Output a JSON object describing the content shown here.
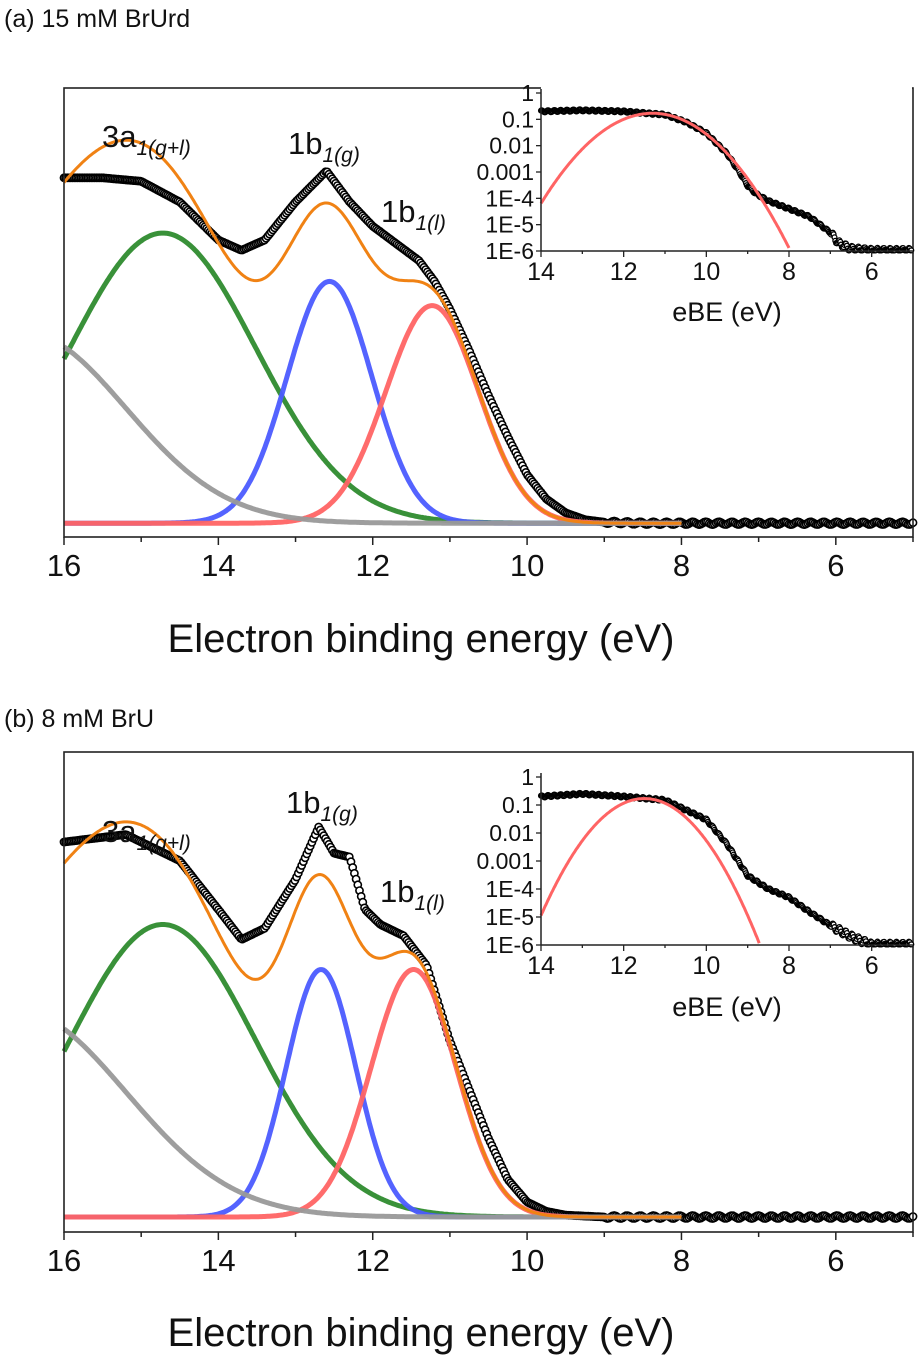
{
  "chart_data": [
    {
      "type": "line",
      "panel_title": "(a) 15 mM BrUrd",
      "xlabel": "Electron binding energy (eV)",
      "ylabel": "",
      "xlim": [
        16,
        5
      ],
      "ylim": [
        -0.04,
        1.26
      ],
      "x_ticks": [
        "16",
        "14",
        "12",
        "10",
        "8",
        "6"
      ],
      "annotations": [
        {
          "main": "3a",
          "sub": "1(g+l)"
        },
        {
          "main": "1b",
          "sub": "1(g)"
        },
        {
          "main": "1b",
          "sub": "1(l)"
        }
      ],
      "experimental": {
        "x": [
          16,
          15.5,
          15,
          14.5,
          14,
          13.7,
          13.4,
          13,
          12.6,
          12.3,
          12,
          11.7,
          11.4,
          11.2,
          11,
          10.75,
          10.5,
          10.25,
          10,
          9.75,
          9.5,
          9.25,
          9,
          8.5,
          8,
          7,
          6,
          5
        ],
        "y": [
          1.0,
          1.0,
          0.99,
          0.93,
          0.82,
          0.79,
          0.82,
          0.93,
          1.02,
          0.93,
          0.86,
          0.81,
          0.76,
          0.7,
          0.62,
          0.5,
          0.37,
          0.25,
          0.14,
          0.07,
          0.03,
          0.01,
          0.003,
          0,
          0,
          0,
          0,
          0
        ]
      },
      "components": [
        {
          "name": "3a1(g+l)",
          "shape": "gaussian",
          "center": 14.72,
          "amplitude": 0.84,
          "sigma": 1.2,
          "color": "#2e8b2e"
        },
        {
          "name": "1b1(g)",
          "shape": "gaussian",
          "center": 12.56,
          "amplitude": 0.7,
          "sigma": 0.55,
          "color": "#4b5bff"
        },
        {
          "name": "1b1(l)",
          "shape": "gaussian",
          "center": 11.23,
          "amplitude": 0.63,
          "sigma": 0.6,
          "color": "#ff6464"
        },
        {
          "name": "background",
          "shape": "gaussian",
          "center": 16.5,
          "amplitude": 0.55,
          "sigma": 1.3,
          "color": "#999999"
        }
      ],
      "fit": {
        "name": "sum",
        "range": [
          16,
          8
        ],
        "color": "#f08214"
      },
      "inset": {
        "xlabel": "eBE (eV)",
        "xlim": [
          14,
          5
        ],
        "yscale": "log",
        "ylim": [
          1e-06,
          1
        ],
        "y_ticks": [
          "1",
          "0.1",
          "0.01",
          "0.001",
          "1E-4",
          "1E-5",
          "1E-6"
        ],
        "x_ticks": [
          "14",
          "12",
          "10",
          "8",
          "6"
        ],
        "experimental": {
          "x": [
            14,
            13,
            12,
            11,
            10.5,
            10,
            9.5,
            9.2,
            9,
            8.8,
            8.5,
            8,
            7.5,
            7,
            6.8,
            6.5,
            6,
            5
          ],
          "y": [
            0.2,
            0.22,
            0.2,
            0.15,
            0.08,
            0.03,
            0.005,
            0.001,
            0.0003,
            0.00015,
            8e-05,
            4e-05,
            2e-05,
            5e-06,
            2e-06,
            1.2e-06,
            1e-06,
            1e-06
          ]
        },
        "fit_component": {
          "name": "1b1(l)",
          "center": 11.3,
          "amplitude": 0.17,
          "sigma": 0.68,
          "range": [
            14,
            8
          ],
          "color": "#ff6464"
        }
      }
    },
    {
      "type": "line",
      "panel_title": "(b) 8 mM BrU",
      "xlabel": "Electron binding energy (eV)",
      "ylabel": "",
      "xlim": [
        16,
        5
      ],
      "ylim": [
        -0.04,
        1.24
      ],
      "x_ticks": [
        "16",
        "14",
        "12",
        "10",
        "8",
        "6"
      ],
      "annotations": [
        {
          "main": "3a",
          "sub": "1(g+l)"
        },
        {
          "main": "1b",
          "sub": "1(g)"
        },
        {
          "main": "1b",
          "sub": "1(l)"
        }
      ],
      "experimental": {
        "x": [
          16,
          15.2,
          14.5,
          14,
          13.7,
          13.4,
          13,
          12.7,
          12.5,
          12.3,
          12.1,
          11.9,
          11.6,
          11.3,
          11,
          10.75,
          10.5,
          10.25,
          10,
          9.75,
          9.5,
          9,
          8,
          7,
          6,
          5
        ],
        "y": [
          1.0,
          1.02,
          0.95,
          0.82,
          0.74,
          0.77,
          0.9,
          1.04,
          0.97,
          0.96,
          0.82,
          0.78,
          0.75,
          0.67,
          0.47,
          0.34,
          0.21,
          0.1,
          0.04,
          0.015,
          0.005,
          0,
          0,
          0,
          0,
          0
        ]
      },
      "components": [
        {
          "name": "3a1(g+l)",
          "shape": "gaussian",
          "center": 14.72,
          "amplitude": 0.78,
          "sigma": 1.2,
          "color": "#2e8b2e"
        },
        {
          "name": "1b1(g)",
          "shape": "gaussian",
          "center": 12.67,
          "amplitude": 0.66,
          "sigma": 0.45,
          "color": "#4b5bff"
        },
        {
          "name": "1b1(l)",
          "shape": "gaussian",
          "center": 11.47,
          "amplitude": 0.66,
          "sigma": 0.55,
          "color": "#ff6464"
        },
        {
          "name": "background",
          "shape": "gaussian",
          "center": 16.6,
          "amplitude": 0.55,
          "sigma": 1.4,
          "color": "#999999"
        }
      ],
      "fit": {
        "name": "sum",
        "range": [
          16,
          8
        ],
        "color": "#f08214"
      },
      "inset": {
        "xlabel": "eBE (eV)",
        "xlim": [
          14,
          5
        ],
        "yscale": "log",
        "ylim": [
          1e-06,
          1
        ],
        "y_ticks": [
          "1",
          "0.1",
          "0.01",
          "0.001",
          "1E-4",
          "1E-5",
          "1E-6"
        ],
        "x_ticks": [
          "14",
          "12",
          "10",
          "8",
          "6"
        ],
        "experimental": {
          "x": [
            14,
            13,
            12,
            11,
            10,
            9.5,
            9,
            8.5,
            8,
            7.5,
            7,
            6.5,
            6,
            5
          ],
          "y": [
            0.2,
            0.25,
            0.2,
            0.15,
            0.03,
            0.004,
            0.0003,
            0.0001,
            5e-05,
            1.5e-05,
            5e-06,
            2e-06,
            1e-06,
            1e-06
          ]
        },
        "fit_component": {
          "name": "1b1(l)",
          "center": 11.5,
          "amplitude": 0.17,
          "sigma": 0.57,
          "range": [
            14,
            8.3
          ],
          "color": "#ff6464"
        }
      }
    }
  ]
}
